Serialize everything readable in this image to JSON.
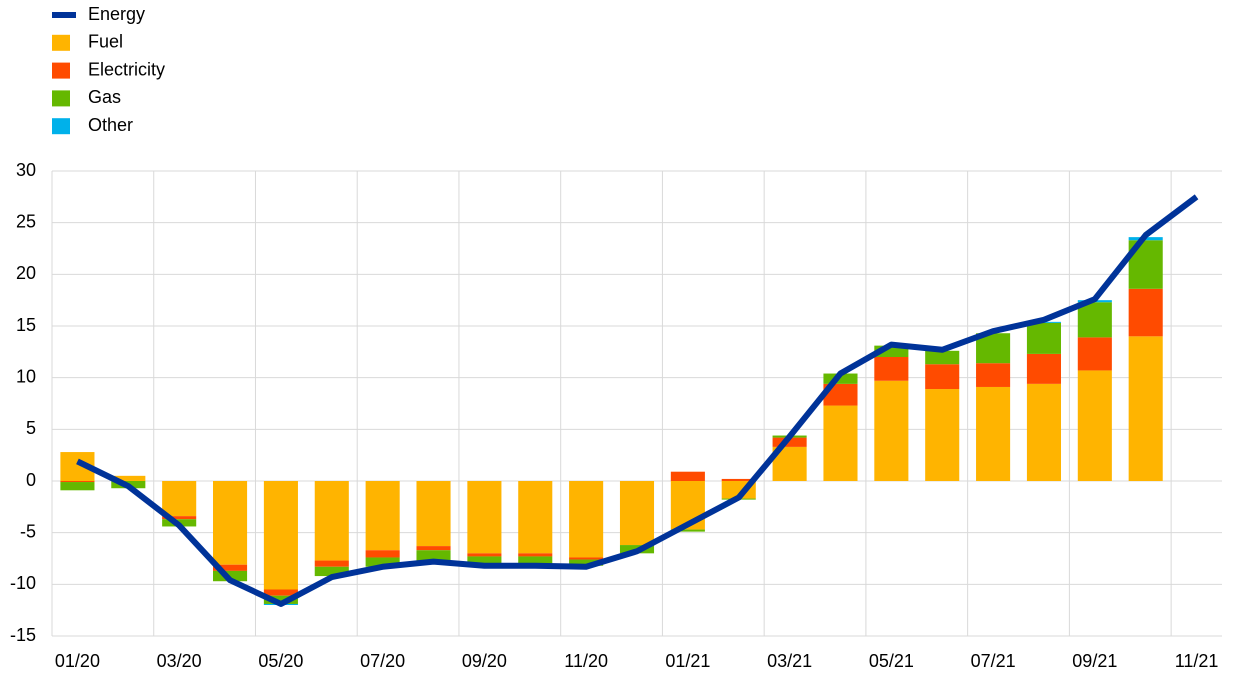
{
  "chart_data": {
    "type": "bar",
    "stacked": true,
    "categories": [
      "01/20",
      null,
      "03/20",
      null,
      "05/20",
      null,
      "07/20",
      null,
      "09/20",
      null,
      "11/20",
      null,
      "01/21",
      null,
      "03/21",
      null,
      "05/21",
      null,
      "07/21",
      null,
      "09/21",
      null,
      "11/21"
    ],
    "series": [
      {
        "name": "Energy",
        "type": "line",
        "color": "#003399",
        "values": [
          1.9,
          -0.5,
          -4.3,
          -9.6,
          -11.9,
          -9.3,
          -8.3,
          -7.8,
          -8.2,
          -8.2,
          -8.3,
          -6.8,
          -4.2,
          -1.6,
          4.3,
          10.4,
          13.2,
          12.7,
          14.5,
          15.6,
          17.6,
          23.8,
          27.5
        ]
      },
      {
        "name": "Fuel",
        "color": "#ffb400",
        "values": [
          2.8,
          0.5,
          -3.4,
          -8.1,
          -10.5,
          -7.7,
          -6.7,
          -6.3,
          -7.0,
          -7.0,
          -7.4,
          -6.2,
          -4.7,
          -1.7,
          3.3,
          7.3,
          9.7,
          8.9,
          9.1,
          9.4,
          10.7,
          14.0,
          null
        ]
      },
      {
        "name": "Electricity",
        "color": "#ff4b00",
        "values": [
          -0.1,
          0,
          -0.3,
          -0.6,
          -0.6,
          -0.6,
          -0.7,
          -0.4,
          -0.3,
          -0.3,
          -0.2,
          0,
          0.9,
          0.2,
          0.9,
          2.1,
          2.3,
          2.4,
          2.3,
          2.9,
          3.2,
          4.6,
          null
        ]
      },
      {
        "name": "Gas",
        "color": "#65b800",
        "values": [
          -0.8,
          -0.7,
          -0.7,
          -1.0,
          -0.8,
          -0.9,
          -0.9,
          -1.0,
          -0.7,
          -0.7,
          -0.6,
          -0.8,
          -0.2,
          -0.1,
          0.2,
          1.0,
          1.1,
          1.3,
          2.9,
          3.0,
          3.4,
          4.7,
          null
        ]
      },
      {
        "name": "Other",
        "color": "#00b1ea",
        "values": [
          0,
          0,
          0,
          0,
          -0.1,
          0,
          0,
          0,
          0,
          0,
          0,
          0,
          0,
          0,
          0,
          0,
          0,
          0,
          0,
          0.1,
          0.2,
          0.3,
          null
        ]
      }
    ],
    "ylim": [
      -15,
      30
    ],
    "yticks": [
      -15,
      -10,
      -5,
      0,
      5,
      10,
      15,
      20,
      25,
      30
    ],
    "grid": true,
    "legend": "top-left"
  }
}
